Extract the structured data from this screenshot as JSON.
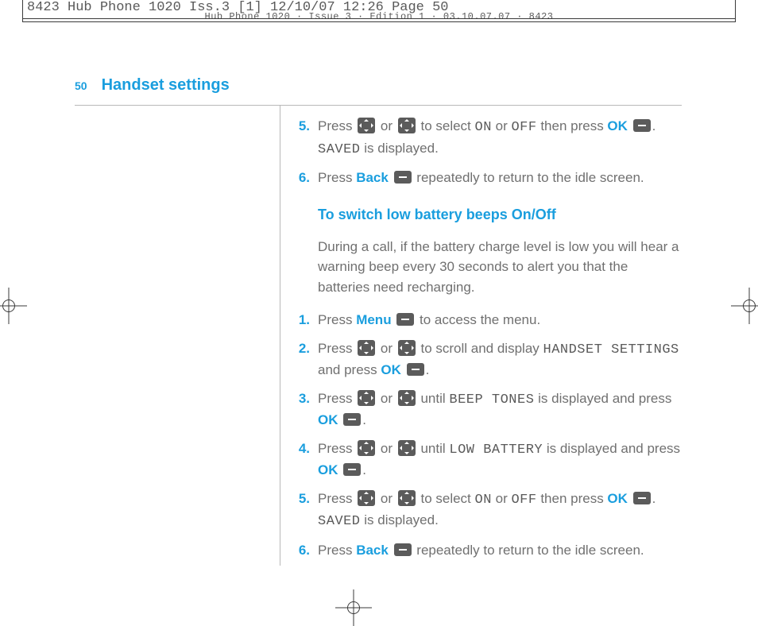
{
  "print_header": "8423 Hub Phone 1020 Iss.3 [1]  12/10/07  12:26  Page 50",
  "print_header_sub": "Hub Phone 1020 · Issue 3 · Edition 1 · 03.10.07.07 · 8423",
  "page_number": "50",
  "page_title": "Handset settings",
  "colors": {
    "accent": "#1a9ede",
    "body_text": "#707070",
    "icon_bg": "#5b5b5b",
    "rule": "#b8b8b8"
  },
  "section_a": {
    "steps": [
      {
        "num": "5.",
        "parts": [
          "Press ",
          "{dpad}",
          " or ",
          "{dpad}",
          " to select ",
          {
            "lcd": "ON"
          },
          " or ",
          {
            "lcd": "OFF"
          },
          " then press ",
          {
            "blue": "OK"
          },
          " ",
          "{minus}",
          ". ",
          {
            "lcd": "SAVED"
          },
          " is displayed."
        ]
      },
      {
        "num": "6.",
        "parts": [
          "Press ",
          {
            "blue": "Back"
          },
          " ",
          "{minus}",
          " repeatedly to return to the idle screen."
        ]
      }
    ]
  },
  "section_b": {
    "heading": "To switch low battery beeps On/Off",
    "intro": "During a call, if the battery charge level is low you will hear a warning beep every 30 seconds to alert you that the batteries need recharging.",
    "steps": [
      {
        "num": "1.",
        "parts": [
          "Press ",
          {
            "blue": "Menu"
          },
          " ",
          "{minus}",
          " to access the menu."
        ]
      },
      {
        "num": "2.",
        "parts": [
          "Press ",
          "{dpad}",
          " or ",
          "{dpad}",
          " to scroll and display ",
          {
            "lcd": "HANDSET SETTINGS"
          },
          " and press ",
          {
            "blue": "OK"
          },
          " ",
          "{minus}",
          "."
        ]
      },
      {
        "num": "3.",
        "parts": [
          "Press ",
          "{dpad}",
          " or ",
          "{dpad}",
          " until ",
          {
            "lcd": "BEEP TONES"
          },
          " is displayed and press ",
          {
            "blue": "OK"
          },
          " ",
          "{minus}",
          "."
        ]
      },
      {
        "num": "4.",
        "parts": [
          "Press ",
          "{dpad}",
          " or ",
          "{dpad}",
          " until ",
          {
            "lcd": "LOW BATTERY"
          },
          " is displayed and press ",
          {
            "blue": "OK"
          },
          " ",
          "{minus}",
          "."
        ]
      },
      {
        "num": "5.",
        "parts": [
          "Press ",
          "{dpad}",
          " or ",
          "{dpad}",
          " to select ",
          {
            "lcd": "ON"
          },
          " or ",
          {
            "lcd": "OFF"
          },
          " then press ",
          {
            "blue": "OK"
          },
          " ",
          "{minus}",
          ". ",
          {
            "lcd": "SAVED"
          },
          " is displayed."
        ]
      },
      {
        "num": "6.",
        "parts": [
          "Press ",
          {
            "blue": "Back"
          },
          " ",
          "{minus}",
          " repeatedly to return to the idle screen."
        ]
      }
    ]
  }
}
